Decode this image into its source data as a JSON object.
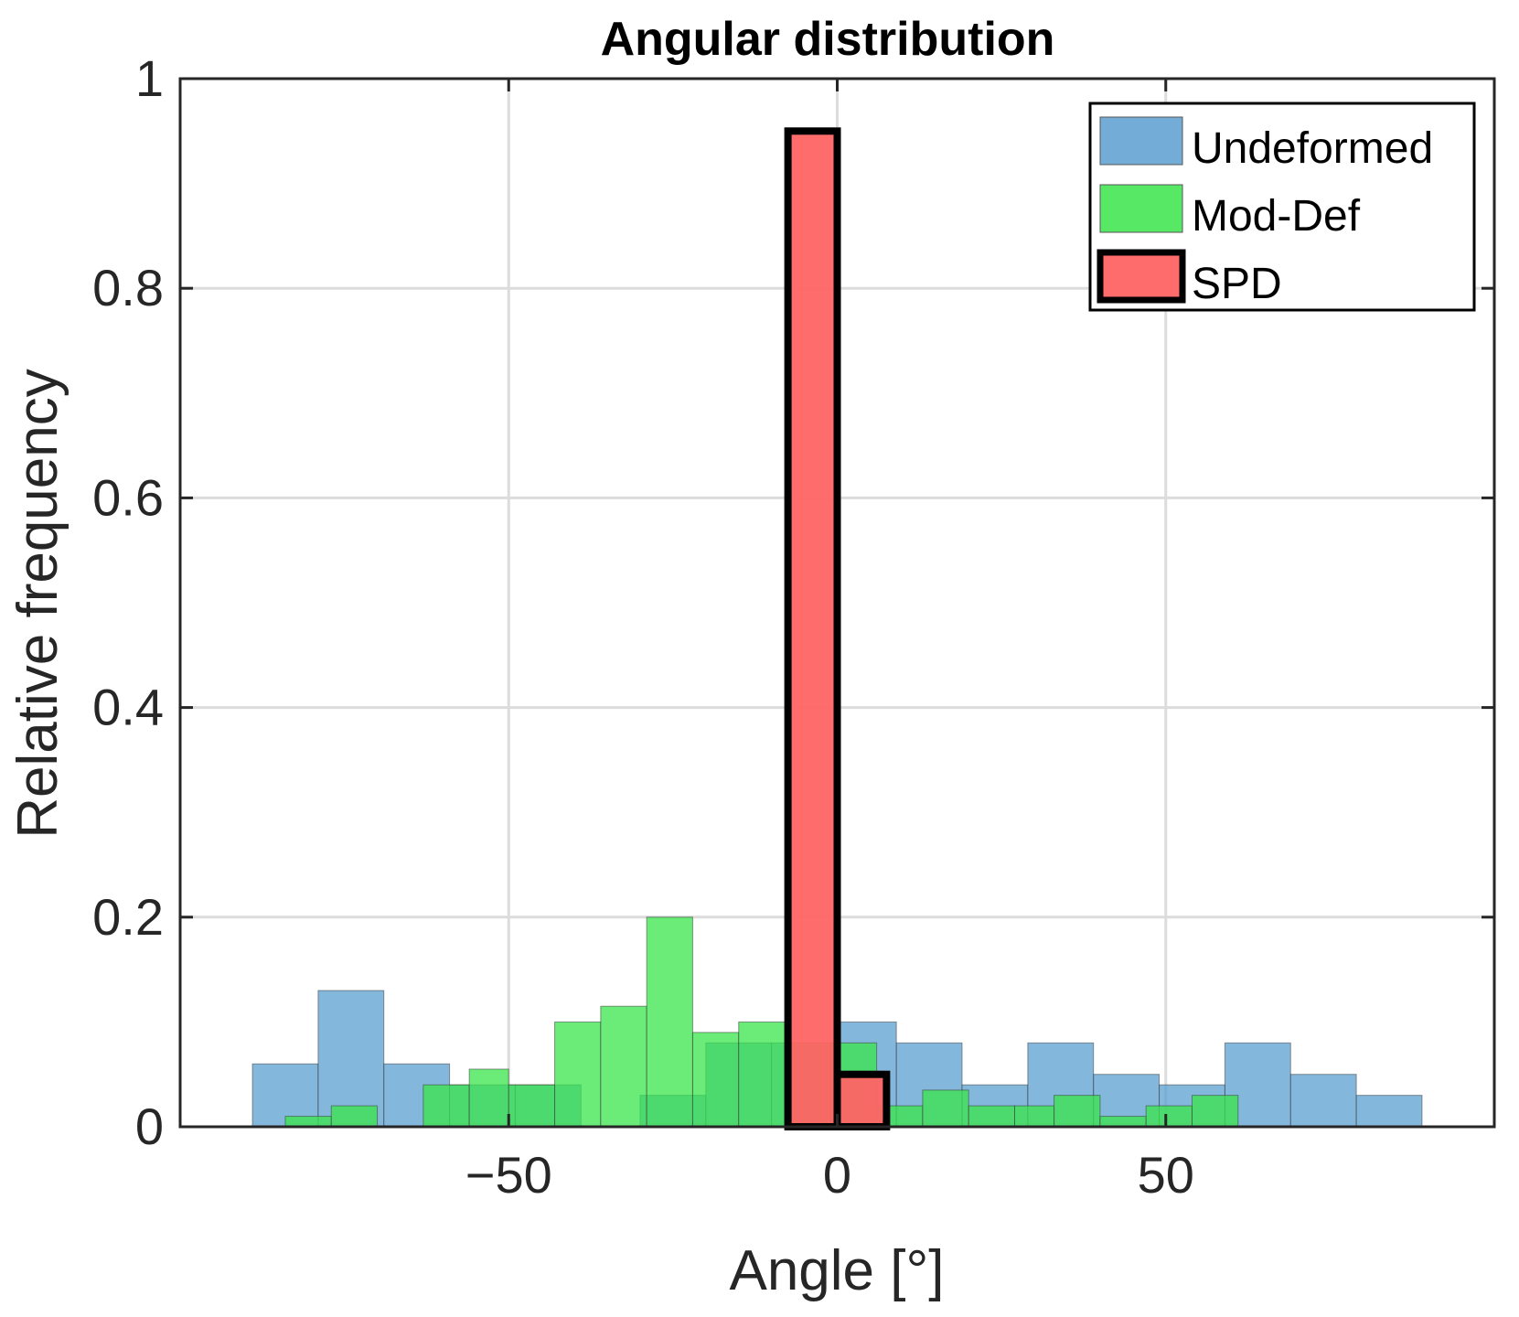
{
  "chart_data": {
    "type": "bar",
    "title": "Angular distribution",
    "xlabel": "Angle [°]",
    "ylabel": "Relative frequency",
    "xlim": [
      -100,
      100
    ],
    "ylim": [
      0,
      1
    ],
    "xticks": [
      -50,
      0,
      50
    ],
    "xtick_labels": [
      "−50",
      "0",
      "50"
    ],
    "yticks": [
      0,
      0.2,
      0.4,
      0.6,
      0.8,
      1
    ],
    "ytick_labels": [
      "0",
      "0.2",
      "0.4",
      "0.6",
      "0.8",
      "1"
    ],
    "grid": true,
    "legend_position": "top-right",
    "series": [
      {
        "name": "Undeformed",
        "color": "#5b9fd0",
        "bins": [
          {
            "x0": -89,
            "x1": -79,
            "value": 0.06
          },
          {
            "x0": -79,
            "x1": -69,
            "value": 0.13
          },
          {
            "x0": -69,
            "x1": -59,
            "value": 0.06
          },
          {
            "x0": -59,
            "x1": -49,
            "value": 0.04
          },
          {
            "x0": -49,
            "x1": -39,
            "value": 0.04
          },
          {
            "x0": -39,
            "x1": -30,
            "value": 0.0
          },
          {
            "x0": -30,
            "x1": -20,
            "value": 0.03
          },
          {
            "x0": -20,
            "x1": -10,
            "value": 0.08
          },
          {
            "x0": -10,
            "x1": 0,
            "value": 0.08
          },
          {
            "x0": 0,
            "x1": 9,
            "value": 0.1
          },
          {
            "x0": 9,
            "x1": 19,
            "value": 0.08
          },
          {
            "x0": 19,
            "x1": 29,
            "value": 0.04
          },
          {
            "x0": 29,
            "x1": 39,
            "value": 0.08
          },
          {
            "x0": 39,
            "x1": 49,
            "value": 0.05
          },
          {
            "x0": 49,
            "x1": 59,
            "value": 0.04
          },
          {
            "x0": 59,
            "x1": 69,
            "value": 0.08
          },
          {
            "x0": 69,
            "x1": 79,
            "value": 0.05
          },
          {
            "x0": 79,
            "x1": 89,
            "value": 0.03
          }
        ]
      },
      {
        "name": "Mod-Def",
        "color": "#3ae44a",
        "bins": [
          {
            "x0": -84,
            "x1": -77,
            "value": 0.01
          },
          {
            "x0": -77,
            "x1": -70,
            "value": 0.02
          },
          {
            "x0": -70,
            "x1": -63,
            "value": 0.0
          },
          {
            "x0": -63,
            "x1": -56,
            "value": 0.04
          },
          {
            "x0": -56,
            "x1": -50,
            "value": 0.055
          },
          {
            "x0": -50,
            "x1": -43,
            "value": 0.04
          },
          {
            "x0": -43,
            "x1": -36,
            "value": 0.1
          },
          {
            "x0": -36,
            "x1": -29,
            "value": 0.115
          },
          {
            "x0": -29,
            "x1": -22,
            "value": 0.2
          },
          {
            "x0": -22,
            "x1": -15,
            "value": 0.09
          },
          {
            "x0": -15,
            "x1": -8,
            "value": 0.1
          },
          {
            "x0": -8,
            "x1": -1,
            "value": 0.08
          },
          {
            "x0": -1,
            "x1": 6,
            "value": 0.08
          },
          {
            "x0": 6,
            "x1": 13,
            "value": 0.02
          },
          {
            "x0": 13,
            "x1": 20,
            "value": 0.035
          },
          {
            "x0": 20,
            "x1": 27,
            "value": 0.02
          },
          {
            "x0": 27,
            "x1": 33,
            "value": 0.02
          },
          {
            "x0": 33,
            "x1": 40,
            "value": 0.03
          },
          {
            "x0": 40,
            "x1": 47,
            "value": 0.01
          },
          {
            "x0": 47,
            "x1": 54,
            "value": 0.02
          },
          {
            "x0": 54,
            "x1": 61,
            "value": 0.03
          }
        ]
      },
      {
        "name": "SPD",
        "color": "#ff6464",
        "bins": [
          {
            "x0": -7.5,
            "x1": 0,
            "value": 0.95
          },
          {
            "x0": 0,
            "x1": 7.5,
            "value": 0.05
          }
        ]
      }
    ]
  }
}
